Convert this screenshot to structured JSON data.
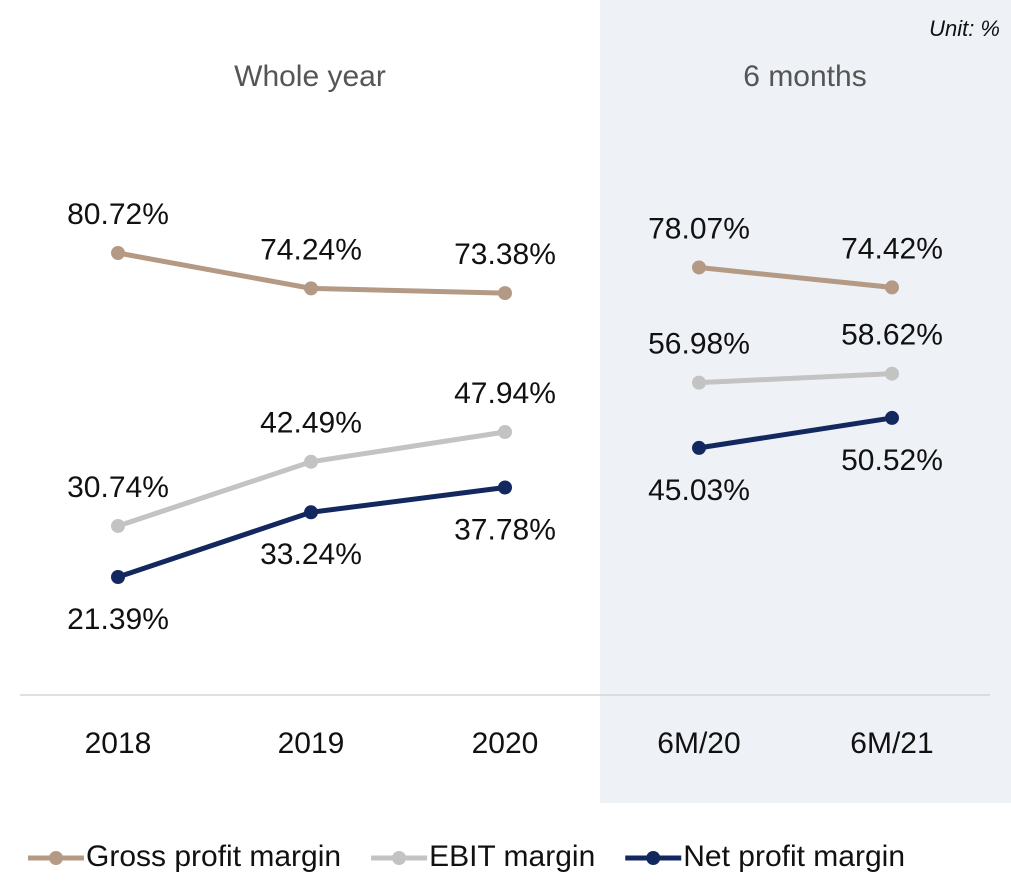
{
  "chart_data": {
    "type": "line",
    "annotation": "Unit: %",
    "groups": [
      {
        "label": "Whole year",
        "categories": [
          "2018",
          "2019",
          "2020"
        ]
      },
      {
        "label": "6 months",
        "categories": [
          "6M/20",
          "6M/21"
        ]
      }
    ],
    "series": [
      {
        "name": "Gross profit margin",
        "color": "#b49a85",
        "values": [
          80.72,
          74.24,
          73.38,
          78.07,
          74.42
        ],
        "value_labels": [
          "80.72%",
          "74.24%",
          "73.38%",
          "78.07%",
          "74.42%"
        ]
      },
      {
        "name": "EBIT margin",
        "color": "#c3c3c3",
        "values": [
          30.74,
          42.49,
          47.94,
          56.98,
          58.62
        ],
        "value_labels": [
          "30.74%",
          "42.49%",
          "47.94%",
          "56.98%",
          "58.62%"
        ]
      },
      {
        "name": "Net profit margin",
        "color": "#13285e",
        "values": [
          21.39,
          33.24,
          37.78,
          45.03,
          50.52
        ],
        "value_labels": [
          "21.39%",
          "33.24%",
          "37.78%",
          "45.03%",
          "50.52%"
        ]
      }
    ]
  }
}
